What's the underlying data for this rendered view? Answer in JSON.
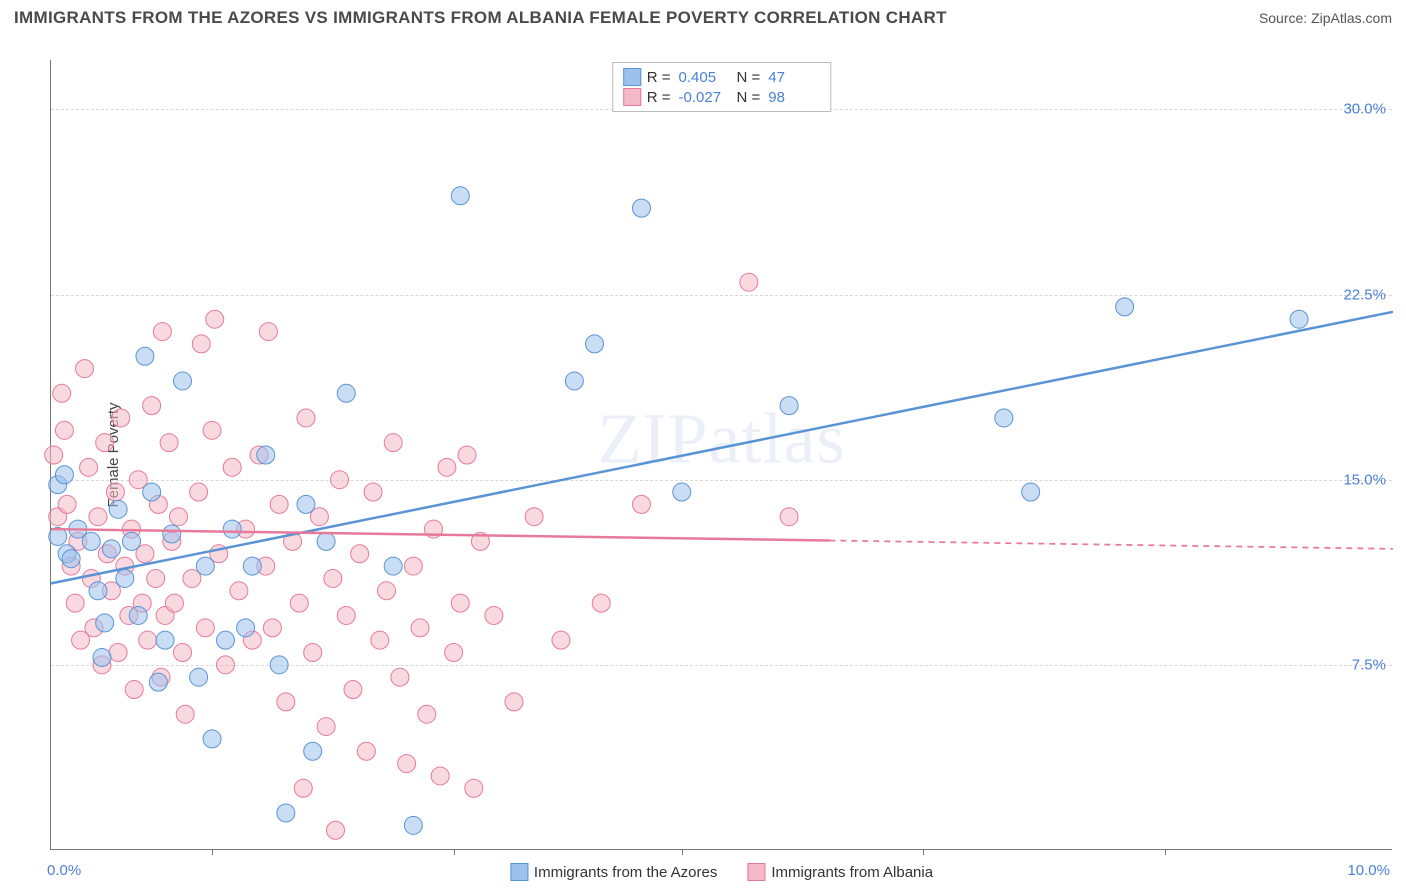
{
  "title": "IMMIGRANTS FROM THE AZORES VS IMMIGRANTS FROM ALBANIA FEMALE POVERTY CORRELATION CHART",
  "source": "Source: ZipAtlas.com",
  "watermark": "ZIPatlas",
  "ylabel": "Female Poverty",
  "chart": {
    "type": "scatter",
    "background_color": "#ffffff",
    "grid_color": "#d8d8d8",
    "axis_color": "#777777",
    "xlim": [
      0.0,
      10.0
    ],
    "ylim": [
      0.0,
      32.0
    ],
    "yticks": [
      7.5,
      15.0,
      22.5,
      30.0
    ],
    "ytick_labels": [
      "7.5%",
      "15.0%",
      "22.5%",
      "30.0%"
    ],
    "xticks": [
      1.2,
      3.0,
      4.7,
      6.5,
      8.3
    ],
    "xaxis_left_label": "0.0%",
    "xaxis_right_label": "10.0%",
    "ytick_color": "#4a7fd8",
    "xtick_color": "#4a7fd8",
    "label_fontsize": 15,
    "marker_radius": 9,
    "marker_opacity": 0.55,
    "line_width": 2.5,
    "series": [
      {
        "name": "Immigrants from the Azores",
        "color_fill": "#9cc1ec",
        "color_stroke": "#5a94d6",
        "R": "0.405",
        "N": "47",
        "trend": {
          "x1": 0.0,
          "y1": 10.8,
          "x2": 10.0,
          "y2": 21.8,
          "solid_until_x": 10.0
        },
        "points": [
          [
            0.05,
            12.7
          ],
          [
            0.05,
            14.8
          ],
          [
            0.1,
            15.2
          ],
          [
            0.12,
            12.0
          ],
          [
            0.15,
            11.8
          ],
          [
            0.2,
            13.0
          ],
          [
            0.3,
            12.5
          ],
          [
            0.35,
            10.5
          ],
          [
            0.38,
            7.8
          ],
          [
            0.4,
            9.2
          ],
          [
            0.45,
            12.2
          ],
          [
            0.5,
            13.8
          ],
          [
            0.55,
            11.0
          ],
          [
            0.6,
            12.5
          ],
          [
            0.65,
            9.5
          ],
          [
            0.7,
            20.0
          ],
          [
            0.75,
            14.5
          ],
          [
            0.8,
            6.8
          ],
          [
            0.85,
            8.5
          ],
          [
            0.9,
            12.8
          ],
          [
            0.98,
            19.0
          ],
          [
            1.1,
            7.0
          ],
          [
            1.15,
            11.5
          ],
          [
            1.2,
            4.5
          ],
          [
            1.3,
            8.5
          ],
          [
            1.35,
            13.0
          ],
          [
            1.45,
            9.0
          ],
          [
            1.5,
            11.5
          ],
          [
            1.6,
            16.0
          ],
          [
            1.7,
            7.5
          ],
          [
            1.75,
            1.5
          ],
          [
            1.9,
            14.0
          ],
          [
            1.95,
            4.0
          ],
          [
            2.05,
            12.5
          ],
          [
            2.2,
            18.5
          ],
          [
            2.55,
            11.5
          ],
          [
            2.7,
            1.0
          ],
          [
            3.05,
            26.5
          ],
          [
            3.9,
            19.0
          ],
          [
            4.05,
            20.5
          ],
          [
            4.4,
            26.0
          ],
          [
            4.7,
            14.5
          ],
          [
            5.5,
            18.0
          ],
          [
            7.1,
            17.5
          ],
          [
            7.3,
            14.5
          ],
          [
            8.0,
            22.0
          ],
          [
            9.3,
            21.5
          ]
        ]
      },
      {
        "name": "Immigrants from Albania",
        "color_fill": "#f4b9c7",
        "color_stroke": "#e77a9a",
        "R": "-0.027",
        "N": "98",
        "trend": {
          "x1": 0.0,
          "y1": 13.0,
          "x2": 10.0,
          "y2": 12.2,
          "solid_until_x": 5.8
        },
        "points": [
          [
            0.02,
            16.0
          ],
          [
            0.05,
            13.5
          ],
          [
            0.08,
            18.5
          ],
          [
            0.1,
            17.0
          ],
          [
            0.12,
            14.0
          ],
          [
            0.15,
            11.5
          ],
          [
            0.18,
            10.0
          ],
          [
            0.2,
            12.5
          ],
          [
            0.22,
            8.5
          ],
          [
            0.25,
            19.5
          ],
          [
            0.28,
            15.5
          ],
          [
            0.3,
            11.0
          ],
          [
            0.32,
            9.0
          ],
          [
            0.35,
            13.5
          ],
          [
            0.38,
            7.5
          ],
          [
            0.4,
            16.5
          ],
          [
            0.42,
            12.0
          ],
          [
            0.45,
            10.5
          ],
          [
            0.48,
            14.5
          ],
          [
            0.5,
            8.0
          ],
          [
            0.52,
            17.5
          ],
          [
            0.55,
            11.5
          ],
          [
            0.58,
            9.5
          ],
          [
            0.6,
            13.0
          ],
          [
            0.62,
            6.5
          ],
          [
            0.65,
            15.0
          ],
          [
            0.68,
            10.0
          ],
          [
            0.7,
            12.0
          ],
          [
            0.72,
            8.5
          ],
          [
            0.75,
            18.0
          ],
          [
            0.78,
            11.0
          ],
          [
            0.8,
            14.0
          ],
          [
            0.82,
            7.0
          ],
          [
            0.83,
            21.0
          ],
          [
            0.85,
            9.5
          ],
          [
            0.88,
            16.5
          ],
          [
            0.9,
            12.5
          ],
          [
            0.92,
            10.0
          ],
          [
            0.95,
            13.5
          ],
          [
            0.98,
            8.0
          ],
          [
            1.0,
            5.5
          ],
          [
            1.05,
            11.0
          ],
          [
            1.1,
            14.5
          ],
          [
            1.12,
            20.5
          ],
          [
            1.15,
            9.0
          ],
          [
            1.2,
            17.0
          ],
          [
            1.22,
            21.5
          ],
          [
            1.25,
            12.0
          ],
          [
            1.3,
            7.5
          ],
          [
            1.35,
            15.5
          ],
          [
            1.4,
            10.5
          ],
          [
            1.45,
            13.0
          ],
          [
            1.5,
            8.5
          ],
          [
            1.55,
            16.0
          ],
          [
            1.6,
            11.5
          ],
          [
            1.62,
            21.0
          ],
          [
            1.65,
            9.0
          ],
          [
            1.7,
            14.0
          ],
          [
            1.75,
            6.0
          ],
          [
            1.8,
            12.5
          ],
          [
            1.85,
            10.0
          ],
          [
            1.88,
            2.5
          ],
          [
            1.9,
            17.5
          ],
          [
            1.95,
            8.0
          ],
          [
            2.0,
            13.5
          ],
          [
            2.05,
            5.0
          ],
          [
            2.1,
            11.0
          ],
          [
            2.12,
            0.8
          ],
          [
            2.15,
            15.0
          ],
          [
            2.2,
            9.5
          ],
          [
            2.25,
            6.5
          ],
          [
            2.3,
            12.0
          ],
          [
            2.35,
            4.0
          ],
          [
            2.4,
            14.5
          ],
          [
            2.45,
            8.5
          ],
          [
            2.5,
            10.5
          ],
          [
            2.55,
            16.5
          ],
          [
            2.6,
            7.0
          ],
          [
            2.65,
            3.5
          ],
          [
            2.7,
            11.5
          ],
          [
            2.75,
            9.0
          ],
          [
            2.8,
            5.5
          ],
          [
            2.85,
            13.0
          ],
          [
            2.9,
            3.0
          ],
          [
            2.95,
            15.5
          ],
          [
            3.0,
            8.0
          ],
          [
            3.05,
            10.0
          ],
          [
            3.1,
            16.0
          ],
          [
            3.15,
            2.5
          ],
          [
            3.2,
            12.5
          ],
          [
            3.3,
            9.5
          ],
          [
            3.45,
            6.0
          ],
          [
            3.6,
            13.5
          ],
          [
            3.8,
            8.5
          ],
          [
            4.1,
            10.0
          ],
          [
            4.4,
            14.0
          ],
          [
            5.2,
            23.0
          ],
          [
            5.5,
            13.5
          ]
        ]
      }
    ]
  },
  "legend_top": {
    "label_R": "R =",
    "label_N": "N ="
  },
  "legend_bottom_prefix": ""
}
